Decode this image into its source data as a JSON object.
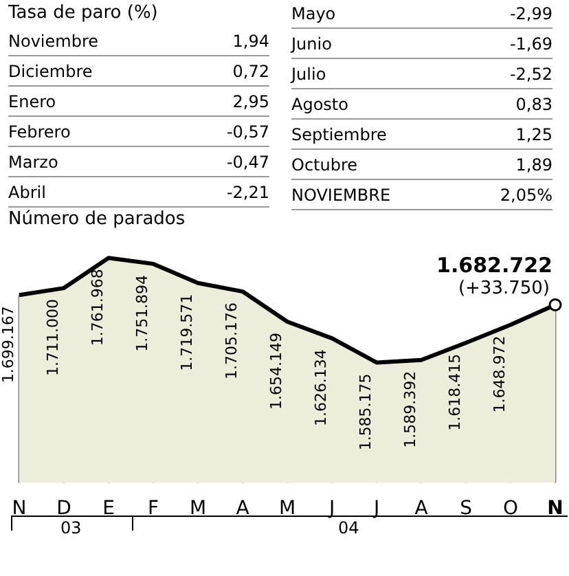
{
  "chart_data": [
    {
      "type": "other",
      "title": "Tasa de paro (%)",
      "categories": [
        "Noviembre",
        "Diciembre",
        "Enero",
        "Febrero",
        "Marzo",
        "Abril",
        "Mayo",
        "Junio",
        "Julio",
        "Agosto",
        "Septiembre",
        "Octubre",
        "NOVIEMBRE"
      ],
      "value_labels": [
        "1,94",
        "0,72",
        "2,95",
        "-0,57",
        "-0,47",
        "-2,21",
        "-2,99",
        "-1,69",
        "-2,52",
        "0,83",
        "1,25",
        "1,89",
        "2,05%"
      ]
    },
    {
      "type": "area",
      "title": "Número de parados",
      "categories": [
        "N",
        "D",
        "E",
        "F",
        "M",
        "A",
        "M",
        "J",
        "J",
        "A",
        "S",
        "O",
        "N"
      ],
      "color": "#000000",
      "values": [
        1699167,
        1711000,
        1761968,
        1751894,
        1719571,
        1705176,
        1654149,
        1626134,
        1585175,
        1589392,
        1618415,
        1648972,
        1682722
      ],
      "value_labels": [
        "1.699.167",
        "1.711.000",
        "1.761.968",
        "1.751.894",
        "1.719.571",
        "1.705.176",
        "1.654.149",
        "1.626.134",
        "1.585.175",
        "1.589.392",
        "1.618.415",
        "1.648.972",
        "1.682.722"
      ],
      "annotations": [
        "(+33.750)",
        "03",
        "04"
      ]
    }
  ]
}
